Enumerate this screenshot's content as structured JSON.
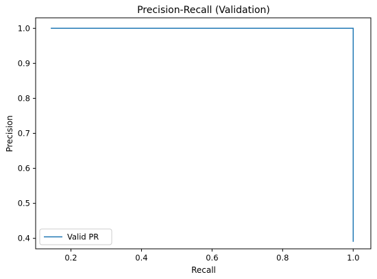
{
  "chart_data": {
    "type": "line",
    "title": "Precision-Recall (Validation)",
    "xlabel": "Recall",
    "ylabel": "Precision",
    "xlim": [
      0.1,
      1.05
    ],
    "ylim": [
      0.37,
      1.03
    ],
    "xticks": [
      0.2,
      0.4,
      0.6,
      0.8,
      1.0
    ],
    "yticks": [
      0.4,
      0.5,
      0.6,
      0.7,
      0.8,
      0.9,
      1.0
    ],
    "xtick_labels": [
      "0.2",
      "0.4",
      "0.6",
      "0.8",
      "1.0"
    ],
    "ytick_labels": [
      "0.4",
      "0.5",
      "0.6",
      "0.7",
      "0.8",
      "0.9",
      "1.0"
    ],
    "grid": false,
    "legend_position": "lower-left",
    "series": [
      {
        "name": "Valid PR",
        "color": "#1f77b4",
        "x": [
          0.143,
          1.0,
          1.0
        ],
        "y": [
          1.0,
          1.0,
          0.39
        ]
      }
    ]
  }
}
